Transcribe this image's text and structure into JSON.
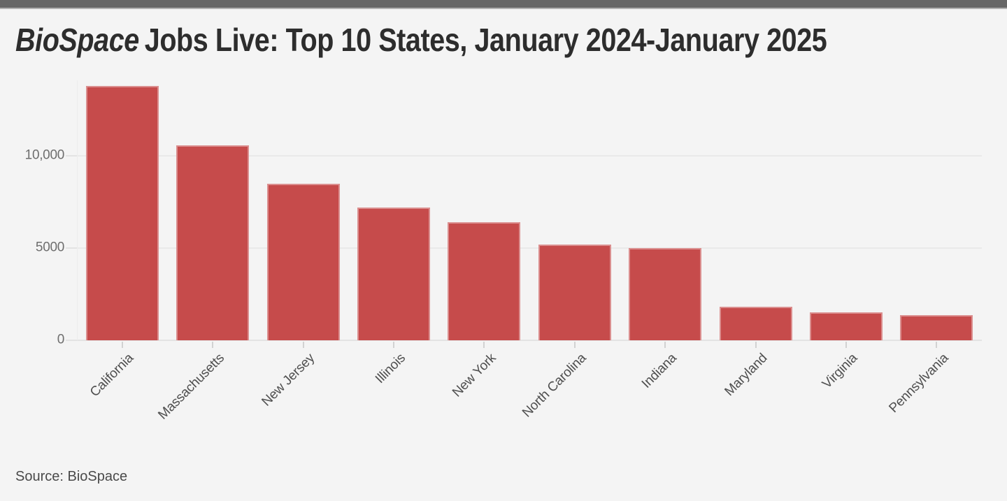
{
  "page": {
    "background_color": "#f4f4f4",
    "top_bar_color": "#666666"
  },
  "header": {
    "title_italic": "BioSpace",
    "title_rest": "Jobs Live: Top 10 States, January 2024-January 2025"
  },
  "chart_data": {
    "type": "bar",
    "title": "BioSpace Jobs Live: Top 10 States, January 2024-January 2025",
    "categories": [
      "California",
      "Massachusetts",
      "New Jersey",
      "Illinois",
      "New York",
      "North Carolina",
      "Indiana",
      "Maryland",
      "Virginia",
      "Pennsylvania"
    ],
    "values": [
      13800,
      10550,
      8500,
      7200,
      6400,
      5200,
      5000,
      1800,
      1500,
      1350
    ],
    "bar_color": "#c64b4b",
    "xlabel": "",
    "ylabel": "",
    "ylim": [
      0,
      14000
    ],
    "yticks": [
      {
        "value": 0,
        "label": "0"
      },
      {
        "value": 5000,
        "label": "5000"
      },
      {
        "value": 10000,
        "label": "10,000"
      }
    ],
    "grid": "horizontal-behind-bars",
    "legend": "none",
    "x_label_rotation_deg": 45,
    "source": "Source: BioSpace"
  }
}
